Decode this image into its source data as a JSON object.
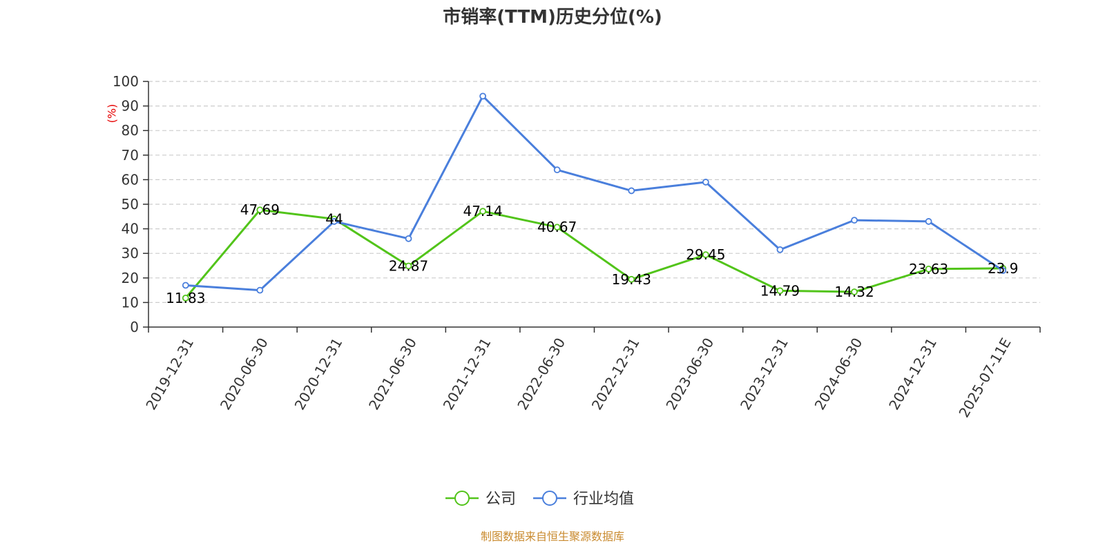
{
  "colors": {
    "company": "#52c41a",
    "industry": "#4a7fdc",
    "ylabel": "#e60000",
    "source": "#c98a2e"
  },
  "chart_data": {
    "type": "line",
    "title": "市销率(TTM)历史分位(%)",
    "ylabel": "(%)",
    "ylim": [
      0,
      100
    ],
    "yticks": [
      0,
      10,
      20,
      30,
      40,
      50,
      60,
      70,
      80,
      90,
      100
    ],
    "categories": [
      "2019-12-31",
      "2020-06-30",
      "2020-12-31",
      "2021-06-30",
      "2021-12-31",
      "2022-06-30",
      "2022-12-31",
      "2023-06-30",
      "2023-12-31",
      "2024-06-30",
      "2024-12-31",
      "2025-07-11E"
    ],
    "series": [
      {
        "name": "公司",
        "values": [
          11.83,
          47.69,
          44,
          24.87,
          47.14,
          40.67,
          19.43,
          29.45,
          14.79,
          14.32,
          23.63,
          23.9
        ],
        "labels": [
          "11.83",
          "47.69",
          "44",
          "24.87",
          "47.14",
          "40.67",
          "19.43",
          "29.45",
          "14.79",
          "14.32",
          "23.63",
          "23.9"
        ]
      },
      {
        "name": "行业均值",
        "values": [
          17,
          15,
          43,
          36,
          94,
          64,
          55.5,
          59,
          31.5,
          43.5,
          43,
          23
        ]
      }
    ],
    "grid": true,
    "legend_position": "bottom-center"
  },
  "source_note": "制图数据来自恒生聚源数据库"
}
